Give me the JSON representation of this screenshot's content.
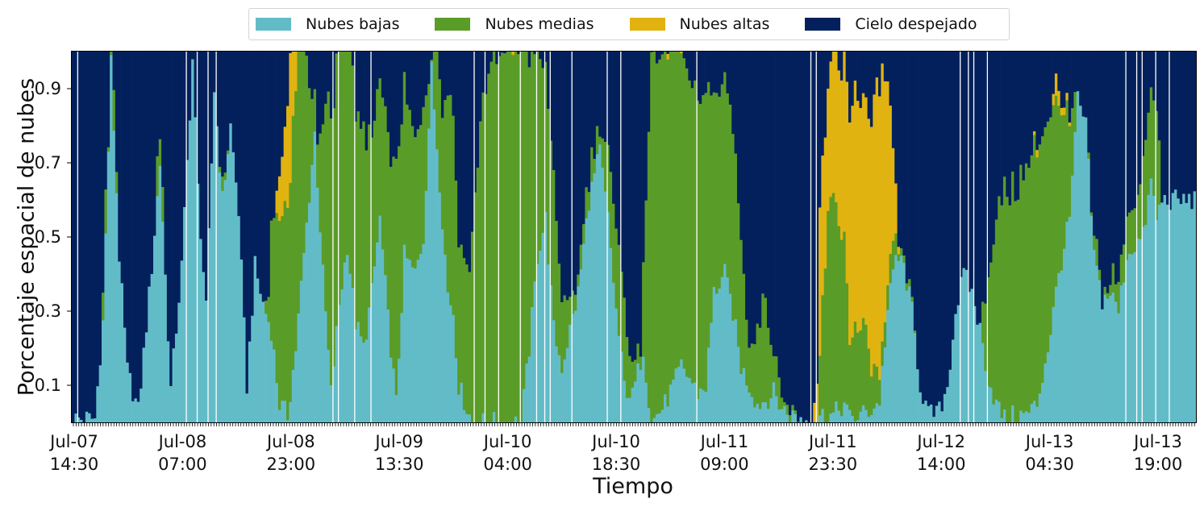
{
  "chart_data": {
    "type": "bar",
    "stacked": true,
    "xlabel": "Tiempo",
    "ylabel": "Porcentaje espacial de nubes",
    "ylim": [
      0,
      1
    ],
    "yticks": [
      0.1,
      0.3,
      0.5,
      0.7,
      0.9
    ],
    "xtick_labels": [
      "Jul-07\n14:30",
      "Jul-08\n07:00",
      "Jul-08\n23:00",
      "Jul-09\n13:30",
      "Jul-10\n04:00",
      "Jul-10\n18:30",
      "Jul-11\n09:00",
      "Jul-11\n23:30",
      "Jul-12\n14:00",
      "Jul-13\n04:30",
      "Jul-13\n19:00"
    ],
    "legend": {
      "position": "top-center"
    },
    "series": [
      {
        "name": "Nubes bajas",
        "color": "#62BCC8"
      },
      {
        "name": "Nubes medias",
        "color": "#5A9C28"
      },
      {
        "name": "Nubes altas",
        "color": "#E1B310"
      },
      {
        "name": "Cielo despejado",
        "color": "#03205C"
      }
    ],
    "profile_keys": {
      "low": [
        [
          0,
          0.01
        ],
        [
          8,
          0.01
        ],
        [
          11,
          0.27
        ],
        [
          14,
          0.97
        ],
        [
          17,
          0.45
        ],
        [
          20,
          0.14
        ],
        [
          24,
          0.03
        ],
        [
          29,
          0.42
        ],
        [
          32,
          0.7
        ],
        [
          36,
          0.09
        ],
        [
          40,
          0.42
        ],
        [
          44,
          0.98
        ],
        [
          46,
          0.63
        ],
        [
          49,
          0.3
        ],
        [
          52,
          0.9
        ],
        [
          55,
          0.6
        ],
        [
          58,
          0.8
        ],
        [
          61,
          0.57
        ],
        [
          64,
          0.1
        ],
        [
          67,
          0.42
        ],
        [
          70,
          0.32
        ],
        [
          73,
          0.25
        ],
        [
          76,
          0.05
        ],
        [
          79,
          0.02
        ],
        [
          82,
          0.2
        ],
        [
          85,
          0.45
        ],
        [
          89,
          0.78
        ],
        [
          92,
          0.4
        ],
        [
          95,
          0.08
        ],
        [
          98,
          0.32
        ],
        [
          101,
          0.48
        ],
        [
          104,
          0.27
        ],
        [
          107,
          0.2
        ],
        [
          110,
          0.35
        ],
        [
          113,
          0.55
        ],
        [
          116,
          0.28
        ],
        [
          119,
          0.05
        ],
        [
          122,
          0.45
        ],
        [
          126,
          0.4
        ],
        [
          129,
          0.5
        ],
        [
          132,
          0.95
        ],
        [
          135,
          0.65
        ],
        [
          138,
          0.35
        ],
        [
          140,
          0.3
        ],
        [
          142,
          0.1
        ],
        [
          147,
          0.0
        ],
        [
          160,
          0.0
        ],
        [
          165,
          0.0
        ],
        [
          168,
          0.2
        ],
        [
          171,
          0.45
        ],
        [
          174,
          0.55
        ],
        [
          177,
          0.25
        ],
        [
          180,
          0.15
        ],
        [
          183,
          0.25
        ],
        [
          186,
          0.35
        ],
        [
          190,
          0.6
        ],
        [
          194,
          0.73
        ],
        [
          197,
          0.55
        ],
        [
          200,
          0.3
        ],
        [
          203,
          0.1
        ],
        [
          206,
          0.07
        ],
        [
          210,
          0.2
        ],
        [
          213,
          0.0
        ],
        [
          218,
          0.05
        ],
        [
          221,
          0.1
        ],
        [
          224,
          0.15
        ],
        [
          227,
          0.12
        ],
        [
          230,
          0.08
        ],
        [
          233,
          0.1
        ],
        [
          236,
          0.35
        ],
        [
          240,
          0.4
        ],
        [
          243,
          0.3
        ],
        [
          246,
          0.15
        ],
        [
          249,
          0.1
        ],
        [
          252,
          0.05
        ],
        [
          255,
          0.06
        ],
        [
          258,
          0.08
        ],
        [
          261,
          0.04
        ],
        [
          264,
          0.02
        ],
        [
          270,
          0.01
        ],
        [
          275,
          0.02
        ],
        [
          280,
          0.02
        ],
        [
          284,
          0.05
        ],
        [
          286,
          0.01
        ],
        [
          290,
          0.02
        ],
        [
          295,
          0.04
        ],
        [
          297,
          0.06
        ],
        [
          300,
          0.3
        ],
        [
          303,
          0.45
        ],
        [
          306,
          0.42
        ],
        [
          309,
          0.3
        ],
        [
          312,
          0.1
        ],
        [
          315,
          0.02
        ],
        [
          319,
          0.03
        ],
        [
          322,
          0.1
        ],
        [
          325,
          0.3
        ],
        [
          328,
          0.4
        ],
        [
          331,
          0.35
        ],
        [
          334,
          0.25
        ],
        [
          337,
          0.12
        ],
        [
          340,
          0.05
        ],
        [
          343,
          0.01
        ],
        [
          347,
          0.02
        ],
        [
          351,
          0.02
        ],
        [
          355,
          0.05
        ],
        [
          359,
          0.2
        ],
        [
          363,
          0.4
        ],
        [
          367,
          0.55
        ],
        [
          370,
          0.87
        ],
        [
          373,
          0.8
        ],
        [
          376,
          0.45
        ],
        [
          379,
          0.33
        ],
        [
          382,
          0.35
        ],
        [
          385,
          0.3
        ],
        [
          388,
          0.45
        ],
        [
          391,
          0.48
        ],
        [
          394,
          0.5
        ],
        [
          397,
          0.65
        ],
        [
          399,
          0.55
        ],
        [
          401,
          0.6
        ]
      ],
      "mid": [
        [
          0,
          0.0
        ],
        [
          10,
          0.0
        ],
        [
          12,
          0.1
        ],
        [
          13,
          0.03
        ],
        [
          15,
          0.1
        ],
        [
          16,
          0.03
        ],
        [
          17,
          0.0
        ],
        [
          30,
          0.0
        ],
        [
          31,
          0.1
        ],
        [
          33,
          0.1
        ],
        [
          34,
          0.0
        ],
        [
          53,
          0.0
        ],
        [
          55,
          0.03
        ],
        [
          56,
          0.02
        ],
        [
          58,
          0.0
        ],
        [
          70,
          0.0
        ],
        [
          72,
          0.05
        ],
        [
          73,
          0.3
        ],
        [
          76,
          0.5
        ],
        [
          79,
          0.55
        ],
        [
          82,
          0.72
        ],
        [
          84,
          0.75
        ],
        [
          86,
          0.45
        ],
        [
          88,
          0.15
        ],
        [
          90,
          0.1
        ],
        [
          94,
          0.7
        ],
        [
          98,
          0.75
        ],
        [
          101,
          0.67
        ],
        [
          104,
          0.53
        ],
        [
          107,
          0.57
        ],
        [
          110,
          0.42
        ],
        [
          113,
          0.38
        ],
        [
          116,
          0.5
        ],
        [
          119,
          0.62
        ],
        [
          122,
          0.45
        ],
        [
          126,
          0.35
        ],
        [
          129,
          0.38
        ],
        [
          132,
          0.03
        ],
        [
          134,
          0.35
        ],
        [
          136,
          0.3
        ],
        [
          138,
          0.55
        ],
        [
          140,
          0.55
        ],
        [
          142,
          0.4
        ],
        [
          146,
          0.4
        ],
        [
          150,
          0.81
        ],
        [
          153,
          0.95
        ],
        [
          160,
          1.0
        ],
        [
          166,
          1.0
        ],
        [
          168,
          0.8
        ],
        [
          171,
          0.55
        ],
        [
          174,
          0.4
        ],
        [
          177,
          0.4
        ],
        [
          180,
          0.2
        ],
        [
          183,
          0.05
        ],
        [
          186,
          0.05
        ],
        [
          190,
          0.08
        ],
        [
          194,
          0.05
        ],
        [
          197,
          0.18
        ],
        [
          200,
          0.2
        ],
        [
          203,
          0.25
        ],
        [
          206,
          0.05
        ],
        [
          209,
          0.05
        ],
        [
          213,
          0.97
        ],
        [
          217,
          0.97
        ],
        [
          220,
          0.91
        ],
        [
          222,
          0.89
        ],
        [
          224,
          0.85
        ],
        [
          227,
          0.8
        ],
        [
          230,
          0.78
        ],
        [
          233,
          0.78
        ],
        [
          236,
          0.55
        ],
        [
          240,
          0.5
        ],
        [
          243,
          0.5
        ],
        [
          246,
          0.35
        ],
        [
          249,
          0.12
        ],
        [
          252,
          0.2
        ],
        [
          255,
          0.3
        ],
        [
          258,
          0.1
        ],
        [
          261,
          0.05
        ],
        [
          264,
          0.02
        ],
        [
          266,
          0.01
        ],
        [
          267,
          0.0
        ],
        [
          274,
          0.0
        ],
        [
          276,
          0.3
        ],
        [
          278,
          0.55
        ],
        [
          280,
          0.58
        ],
        [
          284,
          0.45
        ],
        [
          286,
          0.2
        ],
        [
          288,
          0.25
        ],
        [
          292,
          0.2
        ],
        [
          295,
          0.1
        ],
        [
          299,
          0.05
        ],
        [
          302,
          0.05
        ],
        [
          305,
          0.02
        ],
        [
          308,
          0.02
        ],
        [
          311,
          0.0
        ],
        [
          312,
          0.0
        ],
        [
          315,
          0.0
        ],
        [
          318,
          0.0
        ],
        [
          320,
          0.0
        ],
        [
          330,
          0.0
        ],
        [
          332,
          0.0
        ],
        [
          334,
          0.0
        ],
        [
          337,
          0.3
        ],
        [
          340,
          0.5
        ],
        [
          343,
          0.6
        ],
        [
          347,
          0.62
        ],
        [
          351,
          0.66
        ],
        [
          355,
          0.7
        ],
        [
          359,
          0.62
        ],
        [
          363,
          0.45
        ],
        [
          367,
          0.25
        ],
        [
          370,
          0.0
        ],
        [
          373,
          0.0
        ],
        [
          376,
          0.05
        ],
        [
          379,
          0.03
        ],
        [
          382,
          0.05
        ],
        [
          385,
          0.08
        ],
        [
          388,
          0.1
        ],
        [
          391,
          0.12
        ],
        [
          394,
          0.2
        ],
        [
          397,
          0.25
        ],
        [
          399,
          0.3
        ],
        [
          401,
          0.0
        ]
      ],
      "high": [
        [
          0,
          0.0
        ],
        [
          74,
          0.0
        ],
        [
          76,
          0.12
        ],
        [
          78,
          0.2
        ],
        [
          80,
          0.35
        ],
        [
          82,
          0.55
        ],
        [
          84,
          0.35
        ],
        [
          86,
          0.0
        ],
        [
          160,
          0.0
        ],
        [
          162,
          0.05
        ],
        [
          164,
          0.0
        ],
        [
          218,
          0.0
        ],
        [
          220,
          0.03
        ],
        [
          222,
          0.06
        ],
        [
          224,
          0.03
        ],
        [
          225,
          0.0
        ],
        [
          270,
          0.0
        ],
        [
          272,
          0.0
        ],
        [
          274,
          0.1
        ],
        [
          275,
          0.4
        ],
        [
          278,
          0.33
        ],
        [
          280,
          0.4
        ],
        [
          283,
          0.43
        ],
        [
          286,
          0.6
        ],
        [
          288,
          0.65
        ],
        [
          290,
          0.6
        ],
        [
          293,
          0.62
        ],
        [
          296,
          0.78
        ],
        [
          298,
          0.75
        ],
        [
          300,
          0.55
        ],
        [
          302,
          0.25
        ],
        [
          304,
          0.02
        ],
        [
          305,
          0.0
        ],
        [
          353,
          0.0
        ],
        [
          355,
          0.02
        ],
        [
          356,
          0.0
        ],
        [
          360,
          0.0
        ],
        [
          362,
          0.06
        ],
        [
          364,
          0.02
        ],
        [
          366,
          0.02
        ],
        [
          368,
          0.0
        ],
        [
          414,
          0.0
        ]
      ]
    },
    "white_gap_columns": [
      2,
      42,
      46,
      50,
      53,
      96,
      98,
      104,
      110,
      148,
      152,
      157,
      165,
      171,
      174,
      176,
      184,
      197,
      202,
      230,
      272,
      274,
      327,
      330,
      332,
      337,
      388,
      392,
      394,
      399,
      404
    ]
  }
}
